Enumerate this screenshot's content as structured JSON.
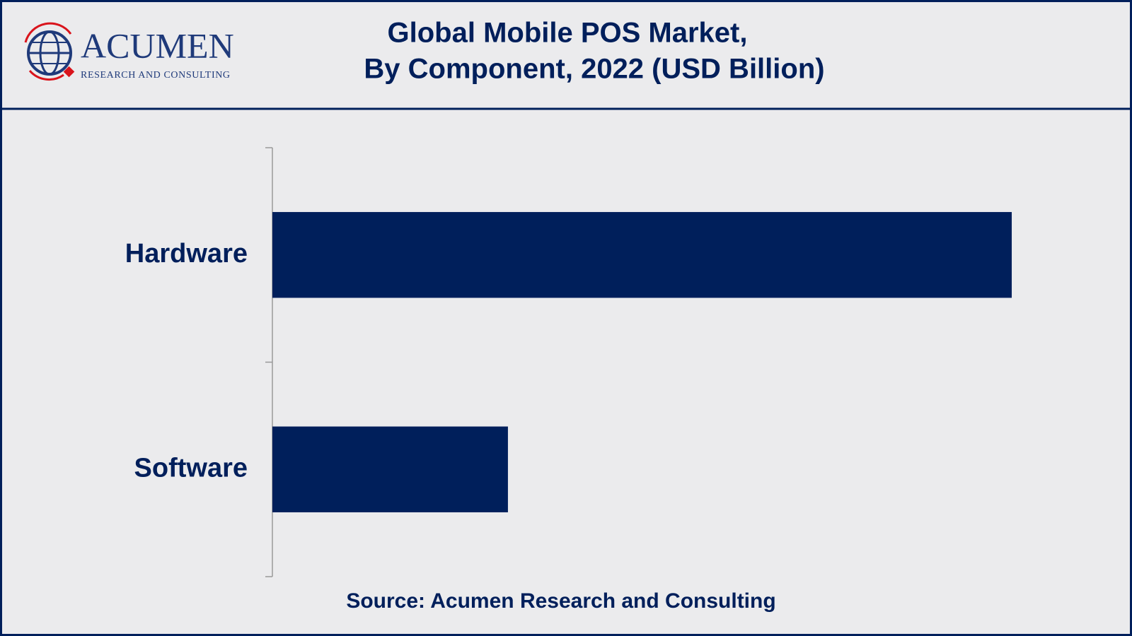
{
  "logo": {
    "name": "ACUMEN",
    "tagline": "RESEARCH AND CONSULTING"
  },
  "chart_data": {
    "type": "barh",
    "title": [
      "Global Mobile POS Market,",
      "By Component, 2022 (USD Billion)"
    ],
    "categories": [
      "Hardware",
      "Software"
    ],
    "values": [
      22.6,
      7.2
    ],
    "color": "#001f5b",
    "xlim": [
      0,
      25
    ],
    "source": "Source: Acumen Research and Consulting"
  }
}
